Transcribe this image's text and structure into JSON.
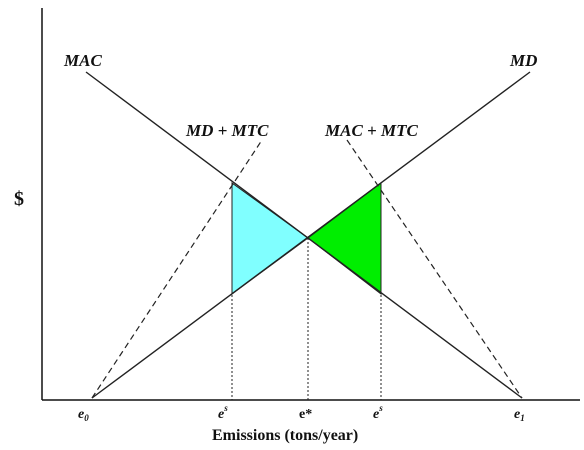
{
  "axes": {
    "y_label": "$",
    "x_label": "Emissions (tons/year)"
  },
  "curves": {
    "mac": "MAC",
    "md": "MD",
    "md_mtc": "MD + MTC",
    "mac_mtc": "MAC + MTC"
  },
  "x_ticks": {
    "e0": "e",
    "e0_sub": "0",
    "es_left": "e",
    "es_left_sup": "s",
    "e_star": "e*",
    "es_right": "e",
    "es_right_sup": "s",
    "e1": "e",
    "e1_sub": "1"
  },
  "colors": {
    "left_region": "#80ffff",
    "right_region": "#00ee00",
    "line": "#222222"
  }
}
